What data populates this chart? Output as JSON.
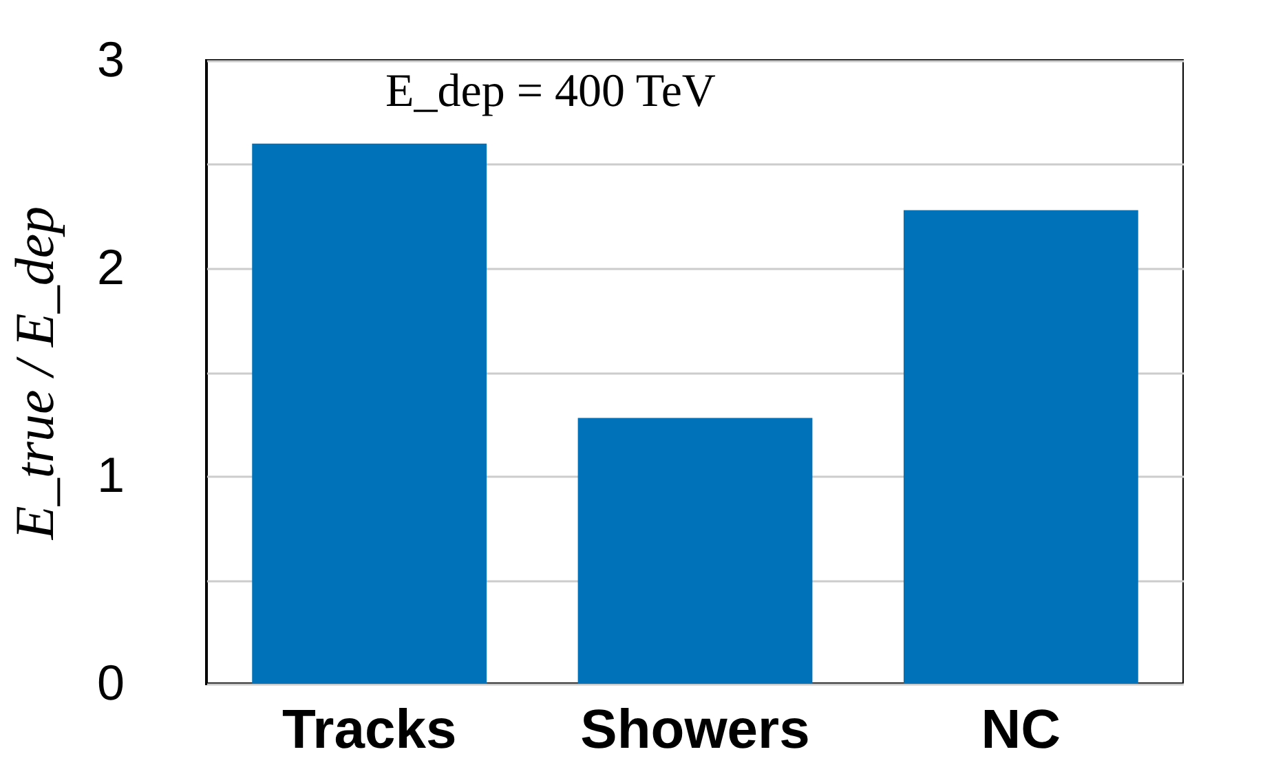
{
  "chart_data": {
    "type": "bar",
    "ylabel": "E_true / E_dep",
    "annotations": [
      "E_dep = 400 TeV"
    ],
    "categories": [
      "Tracks",
      "Showers",
      "NC"
    ],
    "series": [
      {
        "color": "#0072b9",
        "values": [
          2.6,
          1.28,
          2.28
        ]
      }
    ],
    "ylim": [
      0,
      3
    ],
    "yticks": [
      0,
      {
        "value": 0.5,
        "label": null
      },
      1,
      {
        "value": 1.5,
        "label": null
      },
      2,
      {
        "value": 2.5,
        "label": null
      },
      3
    ],
    "grid": "y"
  }
}
